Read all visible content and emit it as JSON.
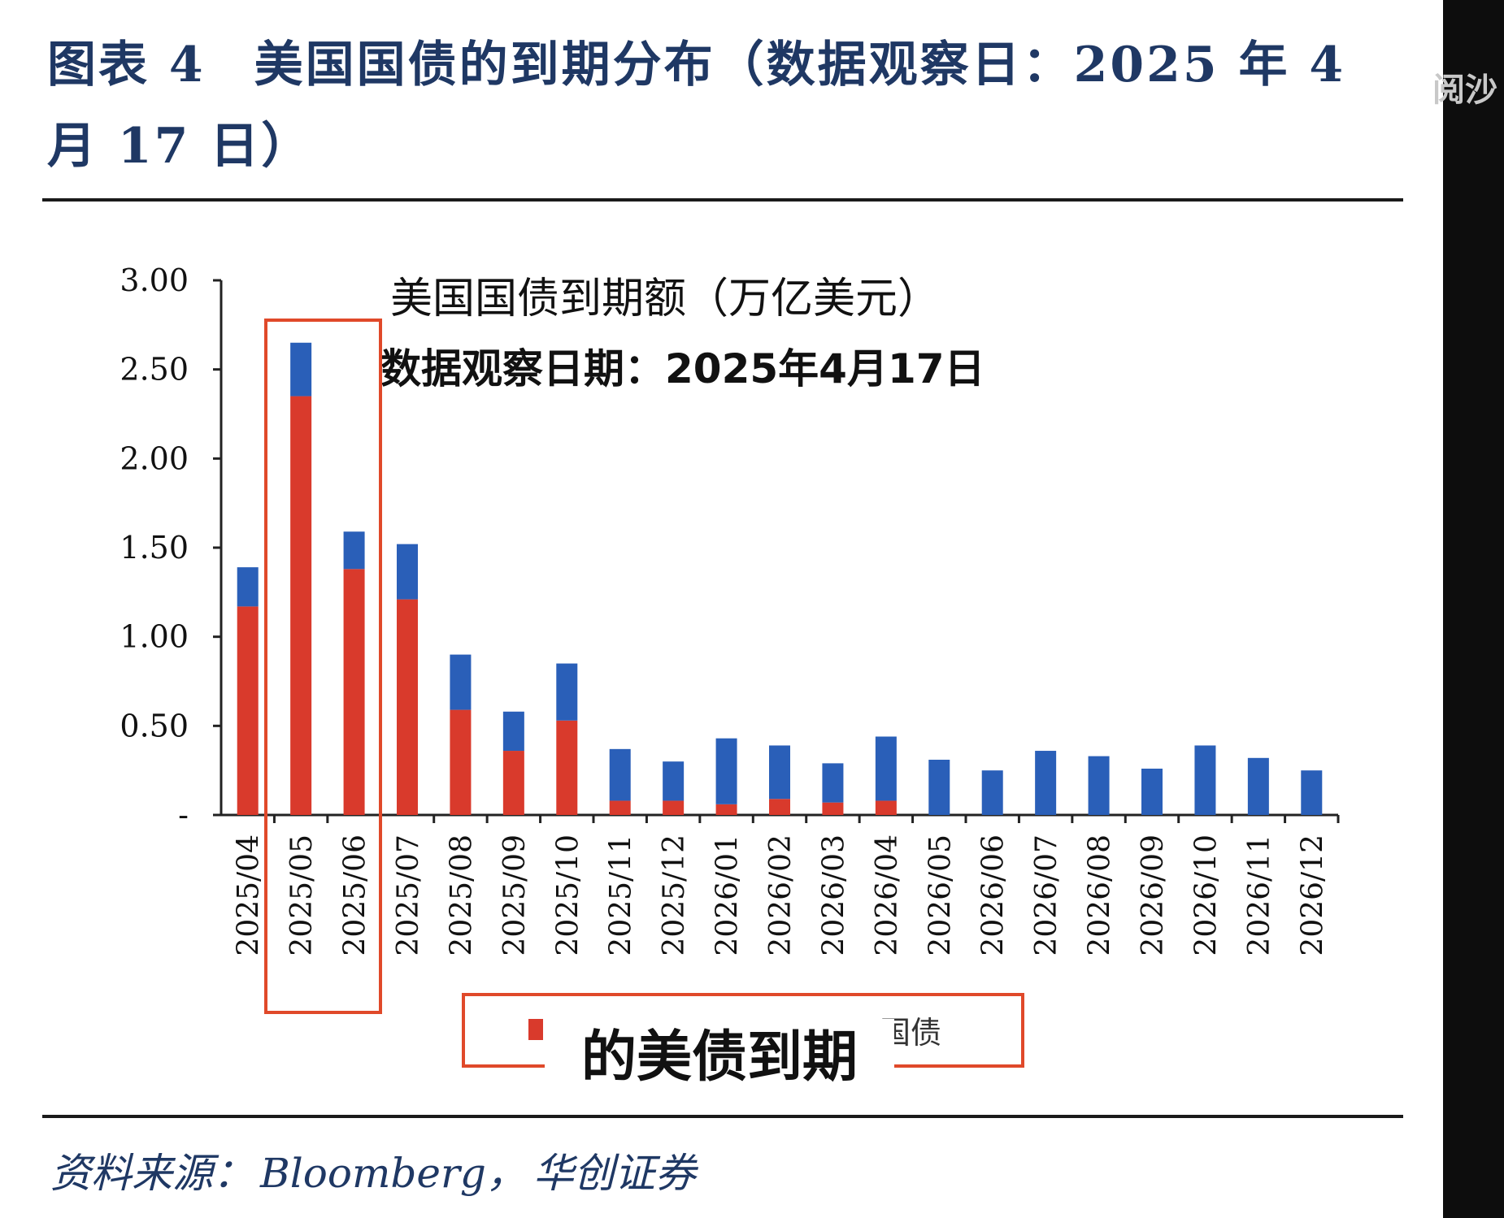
{
  "figure": {
    "title_line1": "图表 4",
    "title_line1_rest": "美国国债的到期分布（数据观察日：2025 年 4",
    "title_line2": "月 17 日）",
    "source_label": "资料来源：",
    "source_name": "Bloomberg，",
    "source_org": "华创证券"
  },
  "overlay": {
    "caption": "的美债到期",
    "legend_partial_text": "国债",
    "right_edge_text": "阅沙"
  },
  "colors": {
    "red_series": "#d93a2c",
    "blue_series": "#2a5fb8",
    "highlight_box": "#e0492a",
    "title_blue": "#1f3864"
  },
  "chart_data": {
    "type": "bar",
    "stacked": true,
    "title": "美国国债到期额（万亿美元）",
    "subtitle": "数据观察日期：2025年4月17日",
    "categories": [
      "2025/04",
      "2025/05",
      "2025/06",
      "2025/07",
      "2025/08",
      "2025/09",
      "2025/10",
      "2025/11",
      "2025/12",
      "2026/01",
      "2026/02",
      "2026/03",
      "2026/04",
      "2026/05",
      "2026/06",
      "2026/07",
      "2026/08",
      "2026/09",
      "2026/10",
      "2026/11",
      "2026/12"
    ],
    "series": [
      {
        "color": "#d93a2c",
        "values": [
          1.17,
          2.35,
          1.38,
          1.21,
          0.59,
          0.36,
          0.53,
          0.08,
          0.08,
          0.06,
          0.09,
          0.07,
          0.08,
          0,
          0,
          0,
          0,
          0,
          0,
          0,
          0
        ]
      },
      {
        "color": "#2a5fb8",
        "values": [
          0.22,
          0.3,
          0.21,
          0.31,
          0.31,
          0.22,
          0.32,
          0.29,
          0.22,
          0.37,
          0.3,
          0.22,
          0.36,
          0.31,
          0.25,
          0.36,
          0.33,
          0.26,
          0.39,
          0.32,
          0.25
        ]
      }
    ],
    "yticks": [
      "-",
      "0.50",
      "1.00",
      "1.50",
      "2.00",
      "2.50",
      "3.00"
    ],
    "ylim": [
      0,
      3.0
    ],
    "xlabel": "",
    "ylabel": "",
    "legend": "bottom",
    "grid": false,
    "highlighted_categories": [
      "2025/05",
      "2025/06"
    ]
  }
}
